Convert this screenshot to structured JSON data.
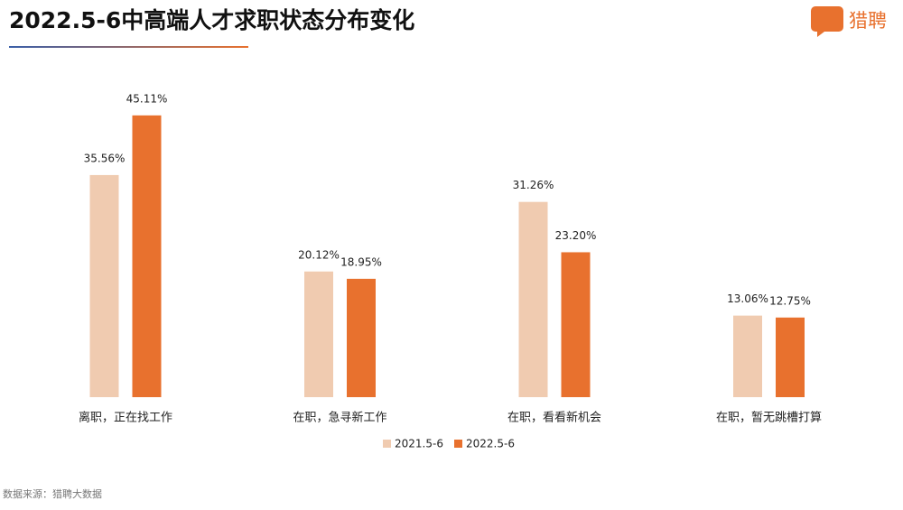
{
  "chart_data": {
    "type": "bar",
    "title": "2022.5-6中高端人才求职状态分布变化",
    "logo": "猎聘",
    "source": "数据来源：猎聘大数据",
    "categories": [
      "离职，正在找工作",
      "在职，急寻新工作",
      "在职，看看新机会",
      "在职，暂无跳槽打算"
    ],
    "series": [
      {
        "name": "2021.5-6",
        "color": "#f0cbb0",
        "values": [
          35.56,
          20.12,
          31.26,
          13.06
        ],
        "value_labels": [
          "35.56%",
          "20.12%",
          "31.26%",
          "13.06%"
        ]
      },
      {
        "name": "2022.5-6",
        "color": "#e8712e",
        "values": [
          45.11,
          18.95,
          23.2,
          12.75
        ],
        "value_labels": [
          "45.11%",
          "18.95%",
          "23.20%",
          "12.75%"
        ]
      }
    ],
    "legend": "bottom"
  }
}
